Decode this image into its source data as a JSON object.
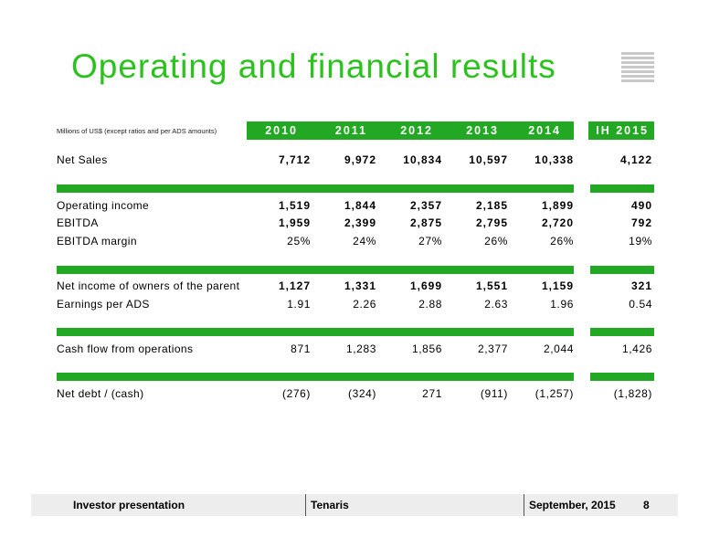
{
  "title": "Operating and financial results",
  "units_note": "Millions of US$ (except ratios and per ADS amounts)",
  "columns": [
    "2010",
    "2011",
    "2012",
    "2013",
    "2014",
    "IH 2015"
  ],
  "rows": [
    {
      "label": "Net Sales",
      "values": [
        "7,712",
        "9,972",
        "10,834",
        "10,597",
        "10,338",
        "4,122"
      ],
      "bold": true
    },
    {
      "label": "Operating income",
      "values": [
        "1,519",
        "1,844",
        "2,357",
        "2,185",
        "1,899",
        "490"
      ],
      "bold": true
    },
    {
      "label": "EBITDA",
      "values": [
        "1,959",
        "2,399",
        "2,875",
        "2,795",
        "2,720",
        "792"
      ],
      "bold": true
    },
    {
      "label": "EBITDA margin",
      "values": [
        "25%",
        "24%",
        "27%",
        "26%",
        "26%",
        "19%"
      ],
      "bold": false
    },
    {
      "label": "Net income of owners of the parent",
      "values": [
        "1,127",
        "1,331",
        "1,699",
        "1,551",
        "1,159",
        "321"
      ],
      "bold": true
    },
    {
      "label": "Earnings per ADS",
      "values": [
        "1.91",
        "2.26",
        "2.88",
        "2.63",
        "1.96",
        "0.54"
      ],
      "bold": false
    },
    {
      "label": "Cash flow from operations",
      "values": [
        "871",
        "1,283",
        "1,856",
        "2,377",
        "2,044",
        "1,426"
      ],
      "bold": false
    },
    {
      "label": "Net debt / (cash)",
      "values": [
        "(276)",
        "(324)",
        "271",
        "(911)",
        "(1,257)",
        "(1,828)"
      ],
      "bold": false
    }
  ],
  "footer": {
    "left": "Investor presentation",
    "center": "Tenaris",
    "date": "September, 2015",
    "page": "8"
  },
  "colors": {
    "title": "#2bc21e",
    "bars": "#22a822",
    "footer_bg": "#ededed"
  }
}
